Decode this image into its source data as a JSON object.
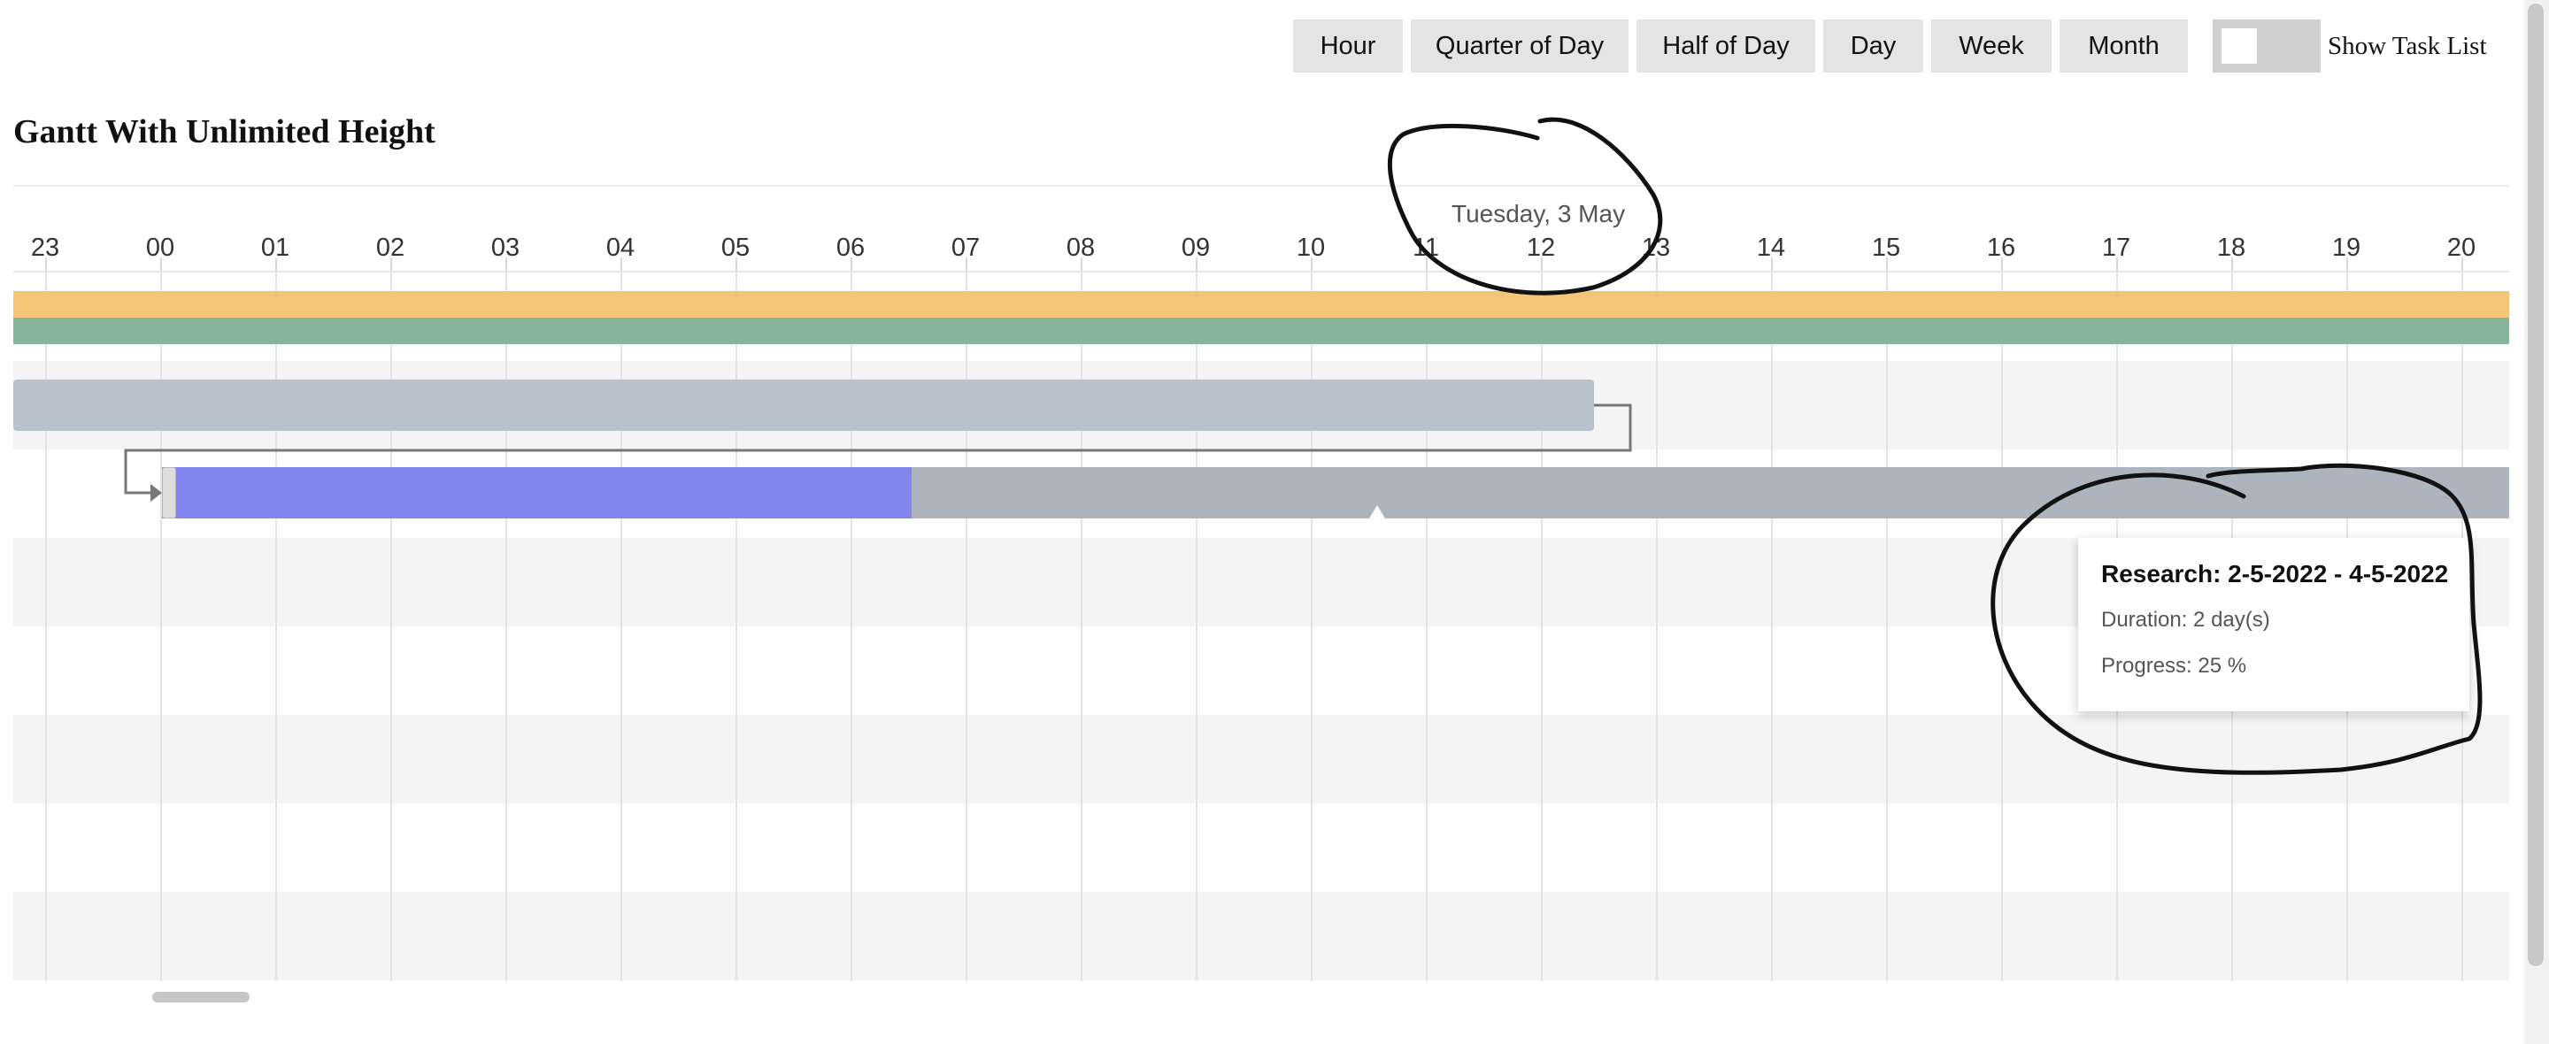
{
  "view_modes": {
    "buttons": [
      {
        "name": "view-mode-hour-button",
        "label": "Hour"
      },
      {
        "name": "view-mode-quarter-day-button",
        "label": "Quarter of Day"
      },
      {
        "name": "view-mode-half-day-button",
        "label": "Half of Day"
      },
      {
        "name": "view-mode-day-button",
        "label": "Day"
      },
      {
        "name": "view-mode-week-button",
        "label": "Week"
      },
      {
        "name": "view-mode-month-button",
        "label": "Month"
      }
    ],
    "task_list_toggle": {
      "label": "Show Task List",
      "checked": false
    }
  },
  "page_title": "Gantt With Unlimited Height",
  "gantt": {
    "date_label": "Tuesday, 3 May",
    "hours": [
      "23",
      "00",
      "01",
      "02",
      "03",
      "04",
      "05",
      "06",
      "07",
      "08",
      "09",
      "10",
      "11",
      "12",
      "13",
      "14",
      "15",
      "16",
      "17",
      "18",
      "19",
      "20"
    ],
    "colors": {
      "today_band": "#f4c576",
      "secondary_band": "#86b59c",
      "project_bar": "#b8c2cc",
      "task_bar": "#aeb4bd",
      "progress": "#8385ee",
      "row_stripe": "#f4f4f4"
    },
    "research_task": {
      "name": "Research",
      "progress_percent": 25
    }
  },
  "tooltip": {
    "title": "Research: 2-5-2022 - 4-5-2022",
    "duration": "Duration: 2 day(s)",
    "progress": "Progress: 25 %"
  }
}
